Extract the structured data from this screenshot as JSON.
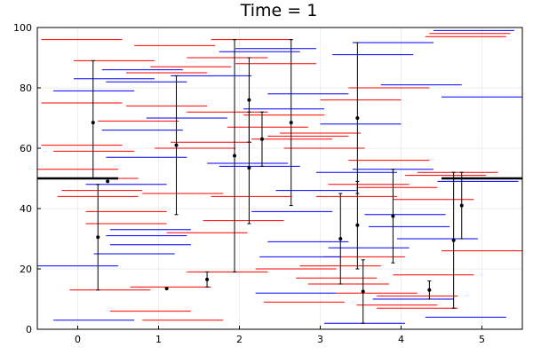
{
  "chart_data": {
    "type": "scatter",
    "title": "Time = 1",
    "xlabel": "",
    "ylabel": "",
    "xlim": [
      -0.5,
      5.5
    ],
    "ylim": [
      0,
      100
    ],
    "xticks": [
      0,
      1,
      2,
      3,
      4,
      5
    ],
    "yticks": [
      0,
      20,
      40,
      60,
      80,
      100
    ],
    "grid": true,
    "legend": "none",
    "colors": {
      "red_segments": "#ff0000",
      "blue_segments": "#0000ff",
      "points": "#000000",
      "boundary": "#000000",
      "grid": "#e9e9e9"
    },
    "red_segments": [
      {
        "x0": -0.45,
        "x1": 0.55,
        "y": 96
      },
      {
        "x0": -0.45,
        "x1": 0.55,
        "y": 75
      },
      {
        "x0": -0.45,
        "x1": 0.55,
        "y": 61
      },
      {
        "x0": -0.3,
        "x1": 0.7,
        "y": 59
      },
      {
        "x0": -0.25,
        "x1": 0.75,
        "y": 50
      },
      {
        "x0": -0.2,
        "x1": 0.8,
        "y": 46
      },
      {
        "x0": -0.25,
        "x1": 0.75,
        "y": 44
      },
      {
        "x0": -0.5,
        "x1": 0.5,
        "y": 53
      },
      {
        "x0": -0.05,
        "x1": 0.95,
        "y": 89
      },
      {
        "x0": 0.25,
        "x1": 1.25,
        "y": 69
      },
      {
        "x0": -0.1,
        "x1": 0.9,
        "y": 13
      },
      {
        "x0": 0.1,
        "x1": 1.1,
        "y": 39
      },
      {
        "x0": 0.1,
        "x1": 1.1,
        "y": 35
      },
      {
        "x0": 0.7,
        "x1": 1.7,
        "y": 94
      },
      {
        "x0": 0.9,
        "x1": 1.9,
        "y": 87
      },
      {
        "x0": 0.6,
        "x1": 1.6,
        "y": 85
      },
      {
        "x0": 0.6,
        "x1": 1.6,
        "y": 74
      },
      {
        "x0": 0.95,
        "x1": 1.95,
        "y": 60
      },
      {
        "x0": 0.8,
        "x1": 1.8,
        "y": 45
      },
      {
        "x0": 0.4,
        "x1": 1.4,
        "y": 6
      },
      {
        "x0": 0.8,
        "x1": 1.8,
        "y": 3
      },
      {
        "x0": 0.65,
        "x1": 1.65,
        "y": 14
      },
      {
        "x0": 1.1,
        "x1": 2.1,
        "y": 32
      },
      {
        "x0": 1.65,
        "x1": 2.65,
        "y": 44
      },
      {
        "x0": 1.35,
        "x1": 2.35,
        "y": 90
      },
      {
        "x0": 1.15,
        "x1": 2.15,
        "y": 62
      },
      {
        "x0": 1.35,
        "x1": 2.35,
        "y": 72
      },
      {
        "x0": 1.35,
        "x1": 2.35,
        "y": 19
      },
      {
        "x0": 1.65,
        "x1": 2.65,
        "y": 96
      },
      {
        "x0": 1.55,
        "x1": 2.55,
        "y": 36
      },
      {
        "x0": 1.95,
        "x1": 2.95,
        "y": 88
      },
      {
        "x0": 2.05,
        "x1": 3.05,
        "y": 71
      },
      {
        "x0": 1.85,
        "x1": 2.85,
        "y": 67
      },
      {
        "x0": 2.15,
        "x1": 3.15,
        "y": 63
      },
      {
        "x0": 2.35,
        "x1": 3.35,
        "y": 64
      },
      {
        "x0": 2.55,
        "x1": 3.55,
        "y": 60
      },
      {
        "x0": 2.2,
        "x1": 3.2,
        "y": 20
      },
      {
        "x0": 2.3,
        "x1": 3.3,
        "y": 9
      },
      {
        "x0": 2.7,
        "x1": 3.7,
        "y": 17
      },
      {
        "x0": 2.85,
        "x1": 3.85,
        "y": 15
      },
      {
        "x0": 2.75,
        "x1": 3.75,
        "y": 21
      },
      {
        "x0": 2.95,
        "x1": 3.95,
        "y": 44
      },
      {
        "x0": 3.0,
        "x1": 4.0,
        "y": 76
      },
      {
        "x0": 2.5,
        "x1": 3.5,
        "y": 65
      },
      {
        "x0": 3.05,
        "x1": 4.05,
        "y": 24
      },
      {
        "x0": 3.1,
        "x1": 4.1,
        "y": 48
      },
      {
        "x0": 3.35,
        "x1": 4.35,
        "y": 56
      },
      {
        "x0": 3.35,
        "x1": 4.35,
        "y": 80
      },
      {
        "x0": 3.45,
        "x1": 4.45,
        "y": 47
      },
      {
        "x0": 3.2,
        "x1": 4.2,
        "y": 12
      },
      {
        "x0": 3.45,
        "x1": 4.45,
        "y": 8
      },
      {
        "x0": 3.7,
        "x1": 4.7,
        "y": 11
      },
      {
        "x0": 3.7,
        "x1": 4.7,
        "y": 7
      },
      {
        "x0": 3.9,
        "x1": 4.9,
        "y": 18
      },
      {
        "x0": 3.9,
        "x1": 4.9,
        "y": 43
      },
      {
        "x0": 4.05,
        "x1": 5.05,
        "y": 51
      },
      {
        "x0": 4.2,
        "x1": 5.2,
        "y": 52
      },
      {
        "x0": 4.35,
        "x1": 5.35,
        "y": 98
      },
      {
        "x0": 4.3,
        "x1": 5.3,
        "y": 97
      },
      {
        "x0": 4.5,
        "x1": 5.5,
        "y": 26
      }
    ],
    "blue_segments": [
      {
        "x0": -0.3,
        "x1": 0.7,
        "y": 79
      },
      {
        "x0": -0.5,
        "x1": 0.5,
        "y": 21
      },
      {
        "x0": -0.3,
        "x1": 0.7,
        "y": 3
      },
      {
        "x0": -0.05,
        "x1": 0.95,
        "y": 83
      },
      {
        "x0": 0.3,
        "x1": 1.3,
        "y": 86
      },
      {
        "x0": 0.35,
        "x1": 1.35,
        "y": 82
      },
      {
        "x0": 0.3,
        "x1": 1.3,
        "y": 66
      },
      {
        "x0": 0.35,
        "x1": 1.35,
        "y": 57
      },
      {
        "x0": 0.1,
        "x1": 1.1,
        "y": 48
      },
      {
        "x0": 0.2,
        "x1": 1.2,
        "y": 25
      },
      {
        "x0": 0.4,
        "x1": 1.4,
        "y": 28
      },
      {
        "x0": 0.4,
        "x1": 1.4,
        "y": 33
      },
      {
        "x0": 0.35,
        "x1": 1.35,
        "y": 31
      },
      {
        "x0": 0.85,
        "x1": 1.85,
        "y": 70
      },
      {
        "x0": 1.15,
        "x1": 2.15,
        "y": 84
      },
      {
        "x0": 1.6,
        "x1": 2.6,
        "y": 55
      },
      {
        "x0": 1.75,
        "x1": 2.75,
        "y": 54
      },
      {
        "x0": 1.75,
        "x1": 2.75,
        "y": 92
      },
      {
        "x0": 1.95,
        "x1": 2.95,
        "y": 93
      },
      {
        "x0": 2.05,
        "x1": 3.05,
        "y": 100
      },
      {
        "x0": 2.05,
        "x1": 3.05,
        "y": 73
      },
      {
        "x0": 2.15,
        "x1": 3.15,
        "y": 39
      },
      {
        "x0": 2.35,
        "x1": 3.35,
        "y": 78
      },
      {
        "x0": 2.45,
        "x1": 3.45,
        "y": 46
      },
      {
        "x0": 2.35,
        "x1": 3.35,
        "y": 29
      },
      {
        "x0": 2.25,
        "x1": 3.25,
        "y": 24
      },
      {
        "x0": 2.2,
        "x1": 3.2,
        "y": 12
      },
      {
        "x0": 2.95,
        "x1": 3.95,
        "y": 52
      },
      {
        "x0": 3.0,
        "x1": 4.0,
        "y": 68
      },
      {
        "x0": 3.4,
        "x1": 4.4,
        "y": 95
      },
      {
        "x0": 3.15,
        "x1": 4.15,
        "y": 91
      },
      {
        "x0": 3.4,
        "x1": 4.4,
        "y": 53
      },
      {
        "x0": 3.1,
        "x1": 4.1,
        "y": 27
      },
      {
        "x0": 3.05,
        "x1": 4.05,
        "y": 2
      },
      {
        "x0": 3.55,
        "x1": 4.55,
        "y": 38
      },
      {
        "x0": 3.65,
        "x1": 4.65,
        "y": 10
      },
      {
        "x0": 3.75,
        "x1": 4.75,
        "y": 81
      },
      {
        "x0": 3.6,
        "x1": 4.6,
        "y": 34
      },
      {
        "x0": 3.95,
        "x1": 4.95,
        "y": 30
      },
      {
        "x0": 4.4,
        "x1": 5.4,
        "y": 99
      },
      {
        "x0": 4.5,
        "x1": 5.5,
        "y": 77
      },
      {
        "x0": 4.45,
        "x1": 5.45,
        "y": 49
      },
      {
        "x0": 4.3,
        "x1": 5.3,
        "y": 4
      }
    ],
    "points": [
      {
        "x": 0.19,
        "y": 68.5,
        "lo": 50,
        "hi": 89
      },
      {
        "x": 0.25,
        "y": 30.5,
        "lo": 13,
        "hi": 48
      },
      {
        "x": 0.37,
        "y": 49,
        "lo": 49,
        "hi": 49
      },
      {
        "x": 1.1,
        "y": 13.5,
        "lo": 13.5,
        "hi": 13.5
      },
      {
        "x": 1.22,
        "y": 61,
        "lo": 38,
        "hi": 84
      },
      {
        "x": 1.6,
        "y": 16.5,
        "lo": 14,
        "hi": 19
      },
      {
        "x": 1.94,
        "y": 57.5,
        "lo": 19,
        "hi": 96
      },
      {
        "x": 2.12,
        "y": 76,
        "lo": 62,
        "hi": 90
      },
      {
        "x": 2.12,
        "y": 53.5,
        "lo": 35,
        "hi": 72
      },
      {
        "x": 2.28,
        "y": 63,
        "lo": 54,
        "hi": 72
      },
      {
        "x": 2.64,
        "y": 68.5,
        "lo": 41,
        "hi": 96
      },
      {
        "x": 3.25,
        "y": 30,
        "lo": 15,
        "hi": 45
      },
      {
        "x": 3.46,
        "y": 70,
        "lo": 45,
        "hi": 95
      },
      {
        "x": 3.46,
        "y": 34.5,
        "lo": 20,
        "hi": 49
      },
      {
        "x": 3.53,
        "y": 12.5,
        "lo": 2,
        "hi": 23
      },
      {
        "x": 3.9,
        "y": 37.5,
        "lo": 22,
        "hi": 53
      },
      {
        "x": 4.35,
        "y": 13,
        "lo": 10,
        "hi": 16
      },
      {
        "x": 4.65,
        "y": 29.5,
        "lo": 7,
        "hi": 52
      },
      {
        "x": 4.75,
        "y": 41,
        "lo": 30,
        "hi": 52
      }
    ],
    "boundary_lines": [
      {
        "x0": -0.5,
        "x1": 0.5,
        "y": 50
      },
      {
        "x0": 4.5,
        "x1": 5.5,
        "y": 50
      }
    ]
  }
}
